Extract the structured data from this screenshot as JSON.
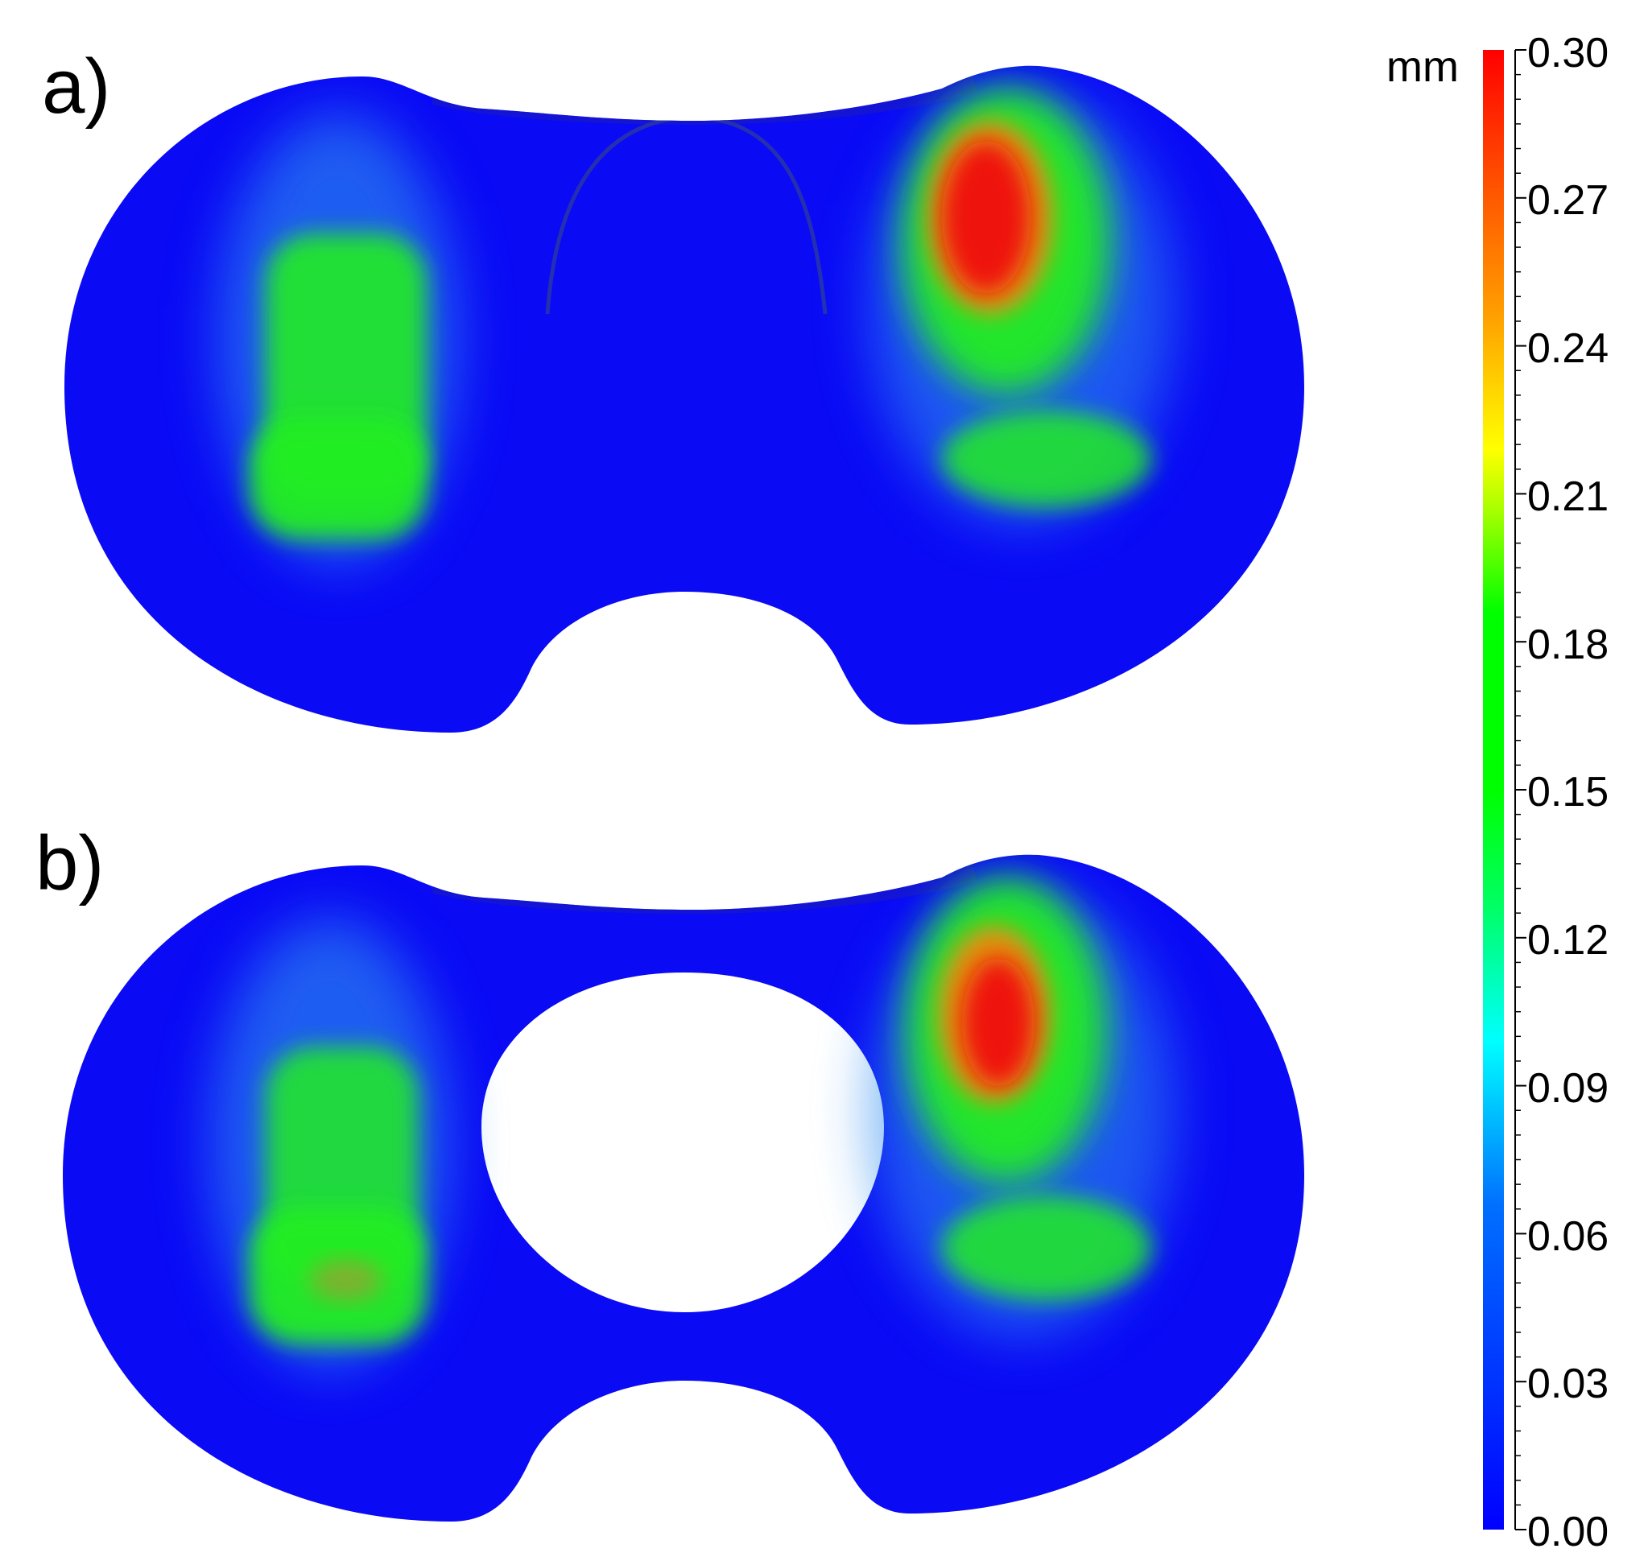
{
  "panels": [
    {
      "label": "a)"
    },
    {
      "label": "b)"
    }
  ],
  "colorbar": {
    "unit": "mm",
    "ticks": [
      "0.30",
      "0.27",
      "0.24",
      "0.21",
      "0.18",
      "0.15",
      "0.12",
      "0.09",
      "0.06",
      "0.03",
      "0.00"
    ],
    "min": 0.0,
    "max": 0.3,
    "colors": {
      "low": "#0000ff",
      "low_mid": "#00ffff",
      "mid": "#00ff00",
      "mid_high": "#ffff00",
      "high": "#ff0000"
    }
  },
  "wear_map_colors": {
    "background_surface": "#0a0af5",
    "light_halo": "#2a8af0",
    "wear_green": "#22ee22",
    "wear_orange": "#f08a10",
    "wear_red": "#f01010"
  }
}
